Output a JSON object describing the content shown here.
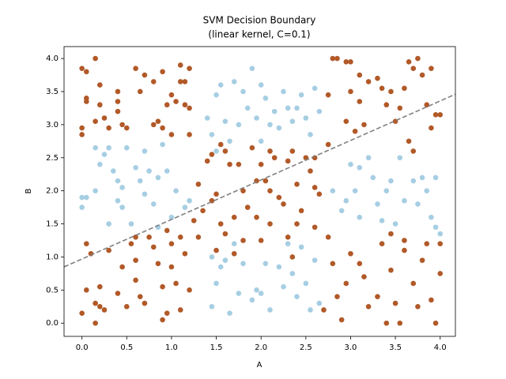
{
  "chart_data": {
    "type": "scatter",
    "title": "SVM Decision Boundary",
    "subtitle": "(linear kernel, C=0.1)",
    "xlabel": "A",
    "ylabel": "B",
    "xlim": [
      -0.2,
      4.17
    ],
    "ylim": [
      -0.2,
      4.18
    ],
    "xticks": [
      {
        "value": 0,
        "label": "0.0"
      },
      {
        "value": 0.5,
        "label": "0.5"
      },
      {
        "value": 1,
        "label": "1.0"
      },
      {
        "value": 1.5,
        "label": "1.5"
      },
      {
        "value": 2,
        "label": "2.0"
      },
      {
        "value": 2.5,
        "label": "2.5"
      },
      {
        "value": 3,
        "label": "3.0"
      },
      {
        "value": 3.5,
        "label": "3.5"
      },
      {
        "value": 4,
        "label": "4.0"
      }
    ],
    "yticks": [
      {
        "value": 0,
        "label": "0.0"
      },
      {
        "value": 0.5,
        "label": "0.5"
      },
      {
        "value": 1,
        "label": "1.0"
      },
      {
        "value": 1.5,
        "label": "1.5"
      },
      {
        "value": 2,
        "label": "2.0"
      },
      {
        "value": 2.5,
        "label": "2.5"
      },
      {
        "value": 3,
        "label": "3.0"
      },
      {
        "value": 3.5,
        "label": "3.5"
      },
      {
        "value": 4,
        "label": "4.0"
      }
    ],
    "grid": false,
    "series": [
      {
        "type": "scatter",
        "color": "#b15928",
        "x": [
          0,
          0.05,
          0.05,
          0.05,
          0.15,
          0.2,
          0.2,
          0.25,
          0.15,
          0.3,
          0.4,
          0.4,
          0.4,
          0.45,
          0.5,
          0.6,
          0.65,
          0.7,
          0.8,
          0.85,
          0.9,
          0.95,
          0.9,
          1.0,
          1.05,
          1.1,
          1.1,
          1.15,
          1.15,
          1.2,
          0,
          0,
          0.8,
          1.0,
          1.2,
          2.75,
          2.8,
          2.85,
          2.95,
          3.0,
          3.0,
          3.1,
          3.1,
          3.2,
          3.3,
          3.35,
          3.4,
          3.45,
          3.5,
          3.6,
          3.65,
          3.7,
          3.75,
          3.8,
          3.85,
          3.9,
          3.95,
          4.0,
          3.9,
          3.05,
          3.15,
          2.95,
          2.75,
          3.65,
          3.7,
          3.55,
          1.4,
          1.45,
          1.5,
          1.55,
          1.6,
          1.65,
          1.75,
          1.8,
          1.85,
          1.9,
          1.95,
          2.0,
          2.05,
          2.1,
          2.15,
          2.2,
          2.3,
          2.35,
          2.4,
          2.45,
          2.5,
          2.55,
          2.6,
          2.65,
          1.55,
          1.6,
          1.7,
          1.8,
          1.95,
          2.0,
          2.1,
          2.3,
          2.35,
          2.4,
          2.6,
          1.45,
          1.5,
          1.7,
          1.35,
          2.25,
          2.1,
          2.6,
          0,
          0.05,
          0.05,
          0.1,
          0.15,
          0.15,
          0.2,
          0.25,
          0.3,
          0.4,
          0.45,
          0.5,
          0.6,
          0.65,
          0.7,
          0.75,
          0.8,
          0.85,
          0.9,
          0.95,
          1.0,
          1.05,
          1.1,
          1.15,
          1.2,
          0.55,
          0.6,
          0.9,
          1.0,
          0.2,
          2.75,
          2.8,
          2.85,
          2.9,
          2.95,
          3.0,
          3.1,
          3.15,
          3.2,
          3.3,
          3.35,
          3.45,
          3.5,
          3.55,
          3.6,
          3.7,
          3.75,
          3.8,
          3.85,
          3.9,
          3.95,
          4.0,
          4.0,
          3.4,
          2.7,
          1.2,
          1.3,
          1.25,
          1.3,
          0.6,
          0.95,
          1.1,
          3.6,
          3.45
        ],
        "values": [
          3.85,
          3.8,
          3.4,
          3.35,
          4.0,
          3.6,
          3.3,
          3.1,
          3.05,
          2.95,
          3.5,
          3.35,
          3.2,
          3.0,
          2.95,
          3.85,
          3.5,
          3.75,
          3.0,
          3.05,
          3.8,
          3.3,
          2.95,
          3.45,
          3.35,
          3.9,
          3.65,
          3.65,
          3.3,
          3.25,
          2.95,
          2.85,
          3.65,
          2.85,
          3.85,
          3.45,
          4.0,
          4.0,
          3.95,
          3.95,
          3.5,
          3.35,
          3.75,
          3.65,
          3.7,
          3.55,
          3.3,
          3.5,
          3.05,
          3.55,
          3.95,
          3.85,
          4.0,
          3.75,
          3.3,
          3.85,
          3.15,
          3.15,
          2.95,
          2.9,
          3.0,
          3.05,
          2.7,
          2.75,
          2.6,
          3.25,
          2.45,
          2.55,
          1.95,
          2.7,
          2.6,
          2.4,
          2.4,
          2.0,
          1.75,
          2.65,
          2.15,
          2.4,
          2.15,
          2.6,
          2.5,
          1.9,
          2.45,
          2.6,
          2.1,
          1.7,
          2.5,
          2.3,
          2.05,
          1.95,
          1.5,
          1.35,
          1.6,
          1.25,
          1.6,
          1.25,
          1.5,
          1.3,
          1.0,
          1.5,
          1.45,
          1.85,
          1.1,
          1.05,
          1.7,
          1.8,
          2.0,
          2.5,
          0.15,
          0.5,
          1.2,
          1.05,
          0.3,
          0.0,
          0.55,
          0.2,
          1.1,
          0.45,
          0.85,
          0.25,
          0.65,
          0.4,
          0.3,
          1.3,
          1.15,
          0.9,
          0.55,
          0.15,
          0.85,
          0.6,
          0.2,
          1.05,
          0.5,
          1.2,
          0.95,
          0.05,
          1.2,
          0.25,
          1.3,
          0.9,
          0.4,
          0.05,
          0.6,
          1.05,
          0.9,
          0.7,
          0.25,
          0.4,
          1.2,
          0.8,
          0.3,
          0.0,
          1.1,
          0.6,
          0.25,
          0.95,
          1.2,
          0.35,
          0.0,
          1.2,
          0.75,
          0.0,
          0.2,
          2.85,
          2.1,
          1.55,
          1.3,
          1.3,
          1.4,
          1.3,
          1.25,
          1.35
        ]
      },
      {
        "type": "scatter",
        "color": "#a6cee3",
        "x": [
          1.4,
          1.5,
          1.55,
          1.6,
          1.65,
          1.7,
          1.8,
          1.85,
          1.9,
          1.95,
          2.0,
          2.05,
          2.1,
          2.15,
          2.2,
          2.25,
          2.3,
          2.35,
          2.45,
          2.5,
          2.55,
          2.6,
          2.65,
          1.45,
          1.5,
          1.75,
          2.4,
          2.0,
          0,
          0,
          0.05,
          0.15,
          0.15,
          0.2,
          0.25,
          0.3,
          0.35,
          0.4,
          0.4,
          0.45,
          0.5,
          0.55,
          0.6,
          0.65,
          0.7,
          0.75,
          0.8,
          0.85,
          0.9,
          0.95,
          1.0,
          1.05,
          1.15,
          1.2,
          0.3,
          0.7,
          0.45,
          0.85,
          2.8,
          2.9,
          3.0,
          3.05,
          3.1,
          3.2,
          3.25,
          3.3,
          3.35,
          3.4,
          3.45,
          3.5,
          3.55,
          3.6,
          3.7,
          3.75,
          3.8,
          3.9,
          3.95,
          3.95,
          4.0,
          3.85,
          3.1,
          2.95,
          1.45,
          1.5,
          1.55,
          1.6,
          1.65,
          1.7,
          1.75,
          1.8,
          1.9,
          1.95,
          2.05,
          2.1,
          2.2,
          2.25,
          2.35,
          2.4,
          2.45,
          2.5,
          2.55,
          2.6,
          2.65,
          1.45,
          2.0,
          2.3
        ],
        "values": [
          3.1,
          3.45,
          3.6,
          3.05,
          2.75,
          3.65,
          3.5,
          3.25,
          3.85,
          3.1,
          2.75,
          3.4,
          3.0,
          3.2,
          2.95,
          3.5,
          3.25,
          3.05,
          3.45,
          3.1,
          2.85,
          3.55,
          3.2,
          2.85,
          2.6,
          3.0,
          3.25,
          3.6,
          1.9,
          1.75,
          1.9,
          2.65,
          2.0,
          2.4,
          2.55,
          2.65,
          2.3,
          2.15,
          1.85,
          1.75,
          2.65,
          1.5,
          2.35,
          2.15,
          2.6,
          2.3,
          1.8,
          2.2,
          2.7,
          2.3,
          1.6,
          2.0,
          1.75,
          1.85,
          1.5,
          1.95,
          2.05,
          1.45,
          2.0,
          1.7,
          2.4,
          2.0,
          1.6,
          2.5,
          2.2,
          1.8,
          1.55,
          2.0,
          2.15,
          1.5,
          2.5,
          1.85,
          2.15,
          1.8,
          2.2,
          1.6,
          2.2,
          1.45,
          1.35,
          2.0,
          2.35,
          1.85,
          0.25,
          0.6,
          0.85,
          0.95,
          0.15,
          1.2,
          0.45,
          0.9,
          0.35,
          0.5,
          0.9,
          0.2,
          0.85,
          0.55,
          0.75,
          0.4,
          1.15,
          0.6,
          0.2,
          0.95,
          0.3,
          1.0,
          0.45,
          1.2
        ]
      },
      {
        "type": "line",
        "color": "#808080",
        "dashed": true,
        "x": [
          -0.2,
          4.17
        ],
        "values": [
          0.85,
          3.46
        ]
      }
    ]
  }
}
